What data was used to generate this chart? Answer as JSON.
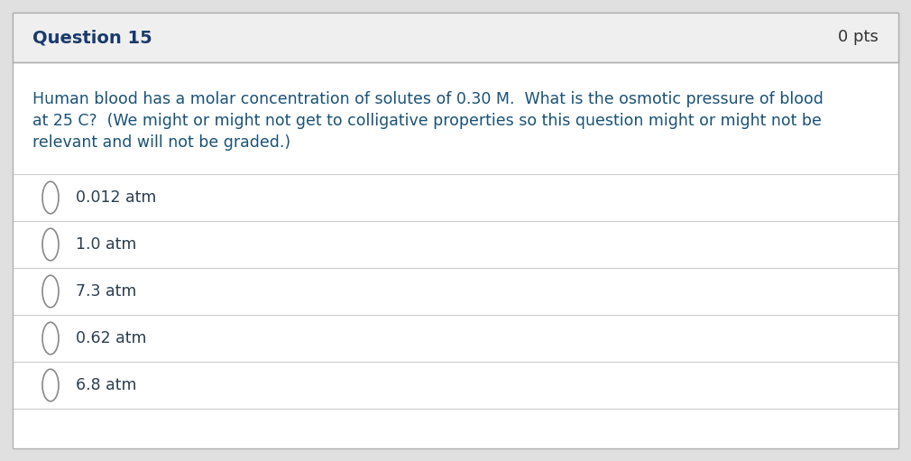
{
  "title": "Question 15",
  "pts": "0 pts",
  "question_lines": [
    "Human blood has a molar concentration of solutes of 0.30 M.  What is the osmotic pressure of blood",
    "at 25 C?  (We might or might not get to colligative properties so this question might or might not be",
    "relevant and will not be graded.)"
  ],
  "choices": [
    "0.012 atm",
    "1.0 atm",
    "7.3 atm",
    "0.62 atm",
    "6.8 atm"
  ],
  "header_bg": "#efefef",
  "body_bg": "#ffffff",
  "outer_bg": "#e0e0e0",
  "border_color": "#b0b0b0",
  "title_color": "#1a3a6b",
  "pts_color": "#333333",
  "question_text_color": "#1a5276",
  "choice_text_color": "#2c3e50",
  "divider_color": "#cccccc",
  "circle_edge_color": "#888888",
  "title_fontsize": 14,
  "pts_fontsize": 13,
  "question_fontsize": 12.5,
  "choice_fontsize": 12.5,
  "fig_width": 10.1,
  "fig_height": 5.11,
  "dpi": 100
}
